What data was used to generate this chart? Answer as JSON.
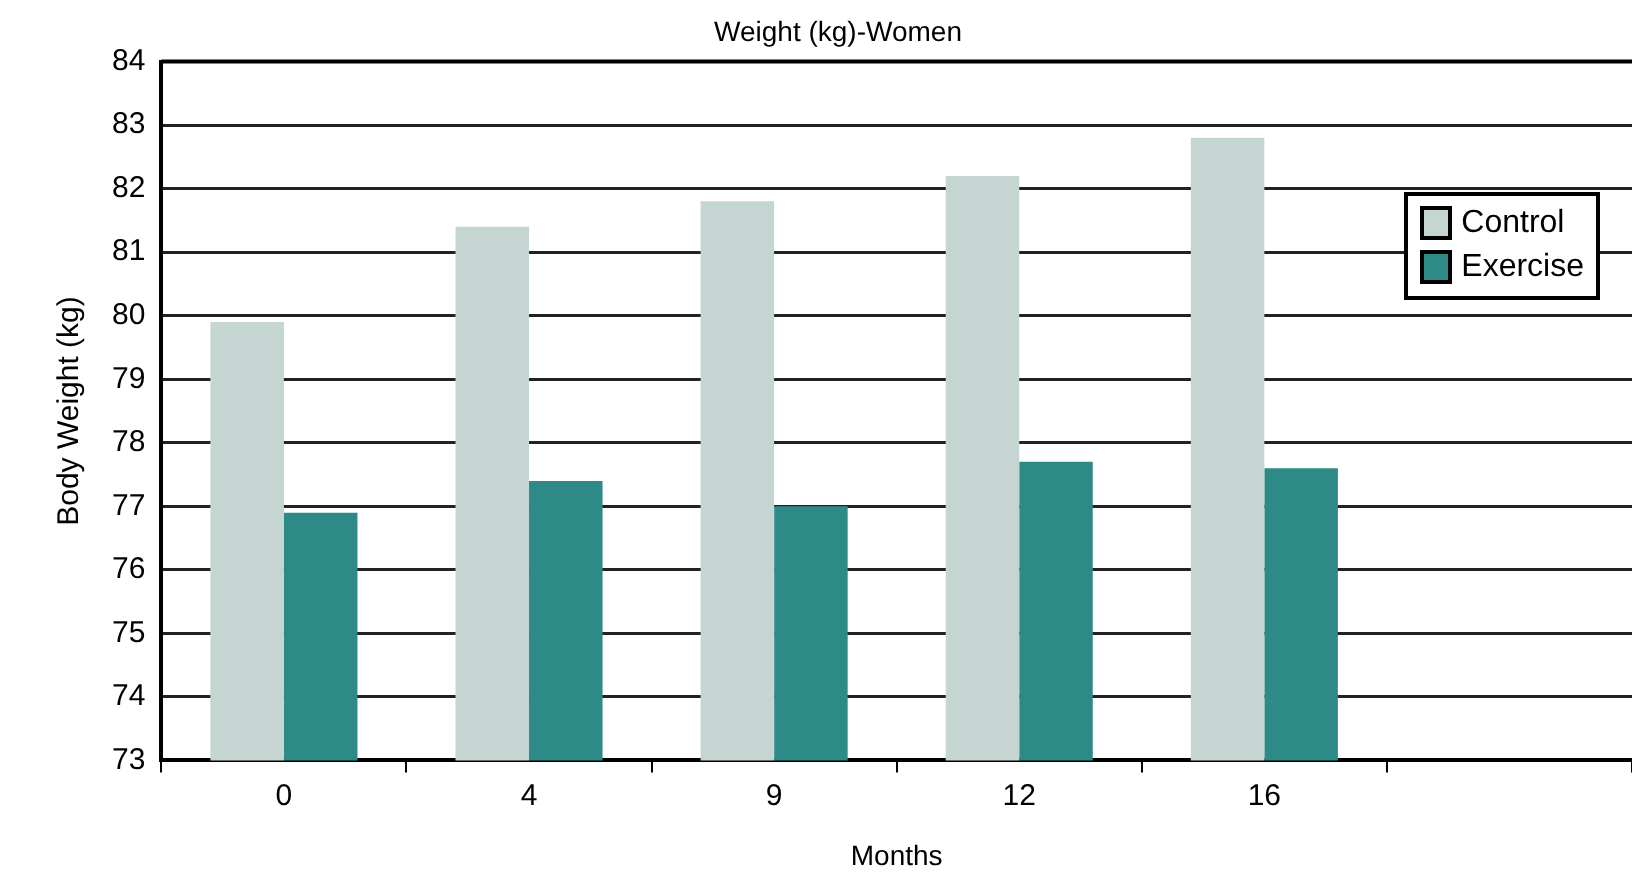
{
  "chart_data": {
    "type": "bar",
    "title": "Weight (kg)-Women",
    "xlabel": "Months",
    "ylabel": "Body Weight (kg)",
    "categories": [
      "0",
      "4",
      "9",
      "12",
      "16",
      null
    ],
    "series": [
      {
        "name": "Control",
        "color": "#c5d5d1",
        "values": [
          79.9,
          81.4,
          81.8,
          82.2,
          82.8,
          null
        ]
      },
      {
        "name": "Exercise",
        "color": "#2e8a86",
        "values": [
          76.9,
          77.4,
          77.0,
          77.7,
          77.6,
          null
        ]
      }
    ],
    "ylim": [
      73,
      84
    ],
    "yticks": [
      73,
      74,
      75,
      76,
      77,
      78,
      79,
      80,
      81,
      82,
      83,
      84
    ],
    "grid": "y",
    "legend": "right"
  }
}
